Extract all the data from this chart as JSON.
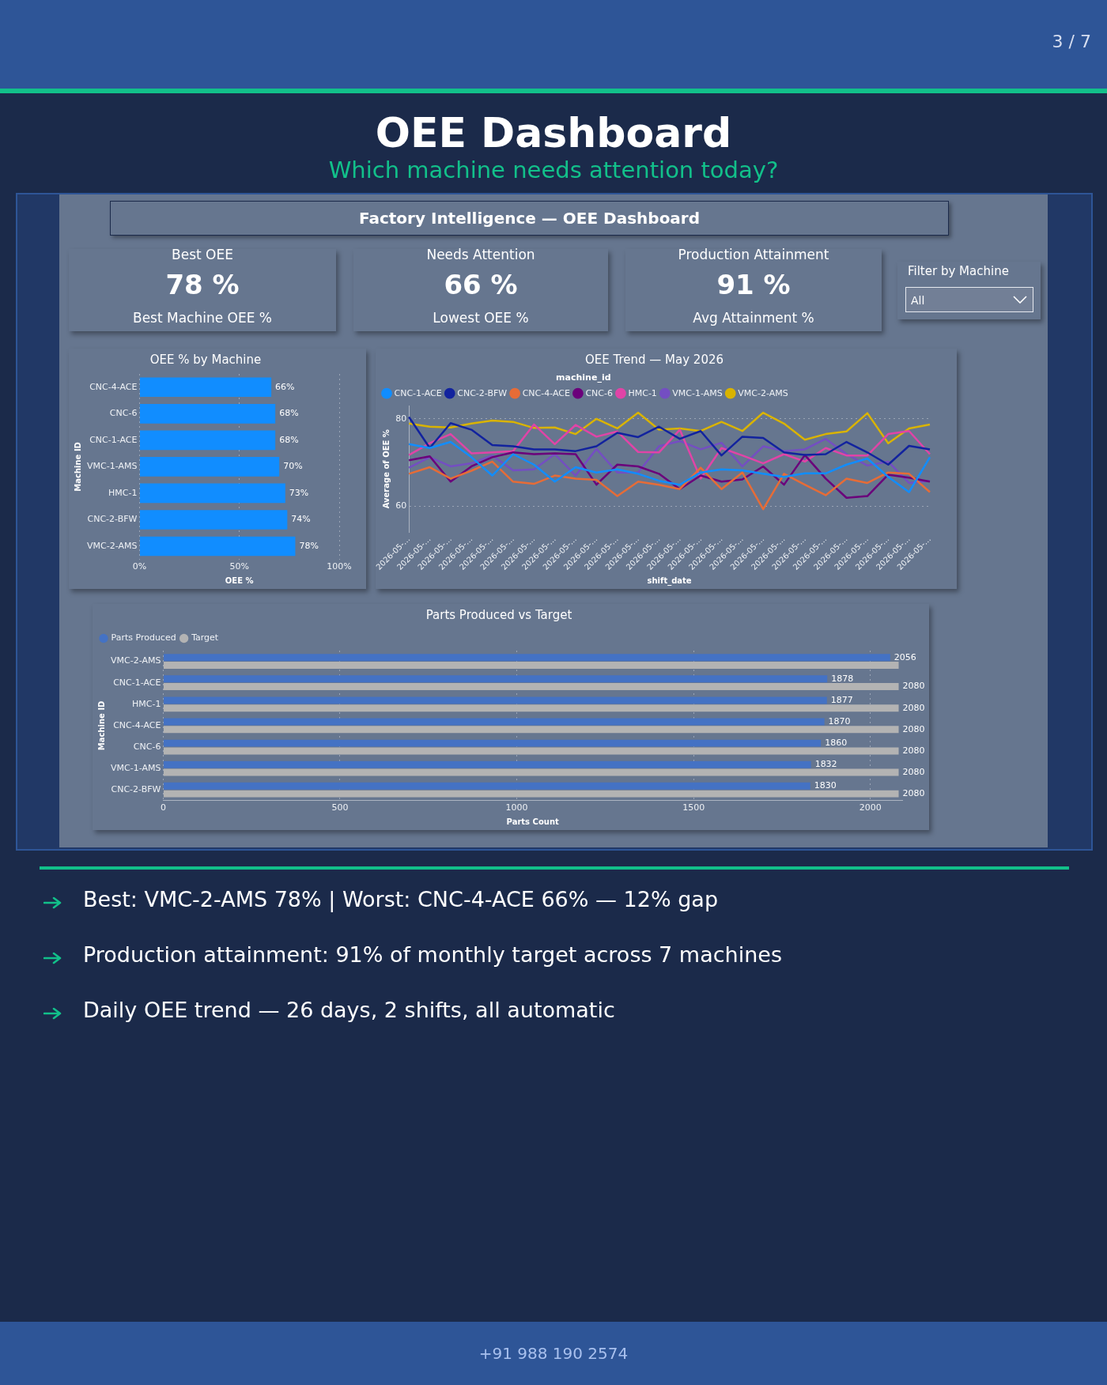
{
  "chart_data": [
    {
      "type": "other",
      "title": "OEE Dashboard",
      "subtitle": "Which machine needs attention today?",
      "annotations": [
        "3 / 7",
        "Factory Intelligence — OEE Dashboard",
        "Best OEE",
        "78 %",
        "Best Machine OEE %",
        "Needs Attention",
        "66 %",
        "Lowest OEE %",
        "Production Attainment",
        "91 %",
        "Avg Attainment %",
        "Filter by Machine",
        "All",
        "Best: VMC-2-AMS 78% | Worst: CNC-4-ACE 66% — 12% gap",
        "Production attainment: 91% of monthly target across 7 machines",
        "Daily OEE trend — 26 days, 2 shifts, all automatic",
        "+91 988 190 2574"
      ]
    },
    {
      "type": "bar",
      "orientation": "horizontal",
      "title": "OEE % by Machine",
      "xlabel": "OEE %",
      "ylabel": "Machine ID",
      "categories": [
        "CNC-4-ACE",
        "CNC-6",
        "CNC-1-ACE",
        "VMC-1-AMS",
        "HMC-1",
        "CNC-2-BFW",
        "VMC-2-AMS"
      ],
      "values": [
        66,
        68,
        68,
        70,
        73,
        74,
        78
      ],
      "value_labels": [
        "66%",
        "68%",
        "68%",
        "70%",
        "73%",
        "74%",
        "78%"
      ],
      "color": "#118dff",
      "xlim": [
        0,
        100
      ],
      "xticks": [
        {
          "value": 0,
          "label": "0%"
        },
        {
          "value": 50,
          "label": "50%"
        },
        {
          "value": 100,
          "label": "100%"
        }
      ],
      "grid": "x"
    },
    {
      "type": "line",
      "title": "OEE Trend — May 2026",
      "xlabel": "shift_date",
      "ylabel": "Average of OEE %",
      "legend_title": "machine_id",
      "legend": "top left",
      "marker": "none",
      "grid": "y",
      "ylim": [
        54,
        83
      ],
      "yticks": [
        60,
        80
      ],
      "categories": [
        "2026-05-…",
        "2026-05-…",
        "2026-05-…",
        "2026-05-…",
        "2026-05-…",
        "2026-05-…",
        "2026-05-…",
        "2026-05-…",
        "2026-05-…",
        "2026-05-…",
        "2026-05-…",
        "2026-05-…",
        "2026-05-…",
        "2026-05-…",
        "2026-05-…",
        "2026-05-…",
        "2026-05-…",
        "2026-05-…",
        "2026-05-…",
        "2026-05-…",
        "2026-05-…",
        "2026-05-…",
        "2026-05-…",
        "2026-05-…",
        "2026-05-…",
        "2026-05-…"
      ],
      "series": [
        {
          "name": "CNC-1-ACE",
          "color": "#118dff",
          "values": [
            74.2,
            73.3,
            74.7,
            71.2,
            67.0,
            71.9,
            69.5,
            65.6,
            68.9,
            67.7,
            68.4,
            67.4,
            65.8,
            64.9,
            67.7,
            68.4,
            68.2,
            67.4,
            66.7,
            67.5,
            67.5,
            69.5,
            70.9,
            66.7,
            63.2,
            71.2
          ]
        },
        {
          "name": "CNC-2-BFW",
          "color": "#12239e",
          "values": [
            80.4,
            73.3,
            79.0,
            77.5,
            74.0,
            73.7,
            73.0,
            73.0,
            72.6,
            73.7,
            76.8,
            75.8,
            78.2,
            75.4,
            77.2,
            71.6,
            75.9,
            75.6,
            72.3,
            71.7,
            71.9,
            74.7,
            72.3,
            69.5,
            73.8,
            73.0
          ]
        },
        {
          "name": "CNC-4-ACE",
          "color": "#e66c37",
          "values": [
            67.4,
            68.9,
            66.3,
            68.1,
            70.2,
            65.6,
            65.1,
            67.0,
            66.3,
            66.0,
            62.3,
            65.6,
            64.9,
            63.9,
            68.8,
            63.9,
            67.7,
            59.3,
            67.4,
            64.9,
            62.5,
            66.3,
            65.3,
            67.7,
            67.4,
            63.2
          ]
        },
        {
          "name": "CNC-6",
          "color": "#6b007b",
          "values": [
            70.5,
            71.4,
            65.6,
            69.1,
            71.2,
            72.3,
            71.9,
            72.1,
            71.9,
            64.9,
            69.5,
            69.1,
            67.4,
            63.9,
            67.0,
            65.6,
            66.1,
            69.1,
            64.9,
            71.7,
            66.3,
            61.9,
            62.3,
            67.2,
            66.5,
            65.6
          ]
        },
        {
          "name": "HMC-1",
          "color": "#e044a7",
          "values": [
            71.7,
            74.4,
            76.5,
            72.1,
            72.3,
            72.6,
            78.7,
            74.2,
            78.6,
            75.9,
            77.1,
            72.4,
            72.3,
            77.5,
            66.3,
            73.3,
            71.6,
            69.8,
            71.9,
            70.2,
            73.3,
            71.6,
            71.6,
            76.5,
            77.2,
            71.9
          ]
        },
        {
          "name": "VMC-1-AMS",
          "color": "#744ec2",
          "values": [
            68.8,
            71.2,
            69.1,
            69.8,
            71.6,
            68.2,
            68.4,
            71.9,
            67.0,
            73.1,
            67.7,
            67.7,
            73.7,
            74.9,
            73.0,
            74.5,
            69.1,
            73.7,
            72.6,
            73.0,
            75.4,
            71.9,
            69.3,
            70.2,
            65.3,
            65.8
          ]
        },
        {
          "name": "VMC-2-AMS",
          "color": "#d9b300",
          "values": [
            78.9,
            78.2,
            78.0,
            78.9,
            79.6,
            79.3,
            77.9,
            78.0,
            76.5,
            80.0,
            77.8,
            81.4,
            77.5,
            77.8,
            77.2,
            79.3,
            77.2,
            81.4,
            78.9,
            75.2,
            76.5,
            77.1,
            81.3,
            74.4,
            77.8,
            78.7
          ]
        }
      ]
    },
    {
      "type": "bar",
      "orientation": "horizontal",
      "title": "Parts Produced vs Target",
      "xlabel": "Parts Count",
      "ylabel": "Machine ID",
      "legend": "top left",
      "grid": "x",
      "xlim": [
        0,
        2090
      ],
      "xticks": [
        0,
        500,
        1000,
        1500,
        2000
      ],
      "categories": [
        "VMC-2-AMS",
        "CNC-1-ACE",
        "HMC-1",
        "CNC-4-ACE",
        "CNC-6",
        "VMC-1-AMS",
        "CNC-2-BFW"
      ],
      "series": [
        {
          "name": "Parts Produced",
          "color": "#4472c4",
          "values": [
            2056,
            1878,
            1877,
            1870,
            1860,
            1832,
            1830
          ],
          "value_labels": [
            "2056",
            "1878",
            "1877",
            "1870",
            "1860",
            "1832",
            "1830"
          ]
        },
        {
          "name": "Target",
          "color": "#b3b3b3",
          "values": [
            2080,
            2080,
            2080,
            2080,
            2080,
            2080,
            2080
          ],
          "value_labels": [
            null,
            "2080",
            "2080",
            "2080",
            "2080",
            "2080",
            "2080"
          ]
        }
      ]
    }
  ]
}
